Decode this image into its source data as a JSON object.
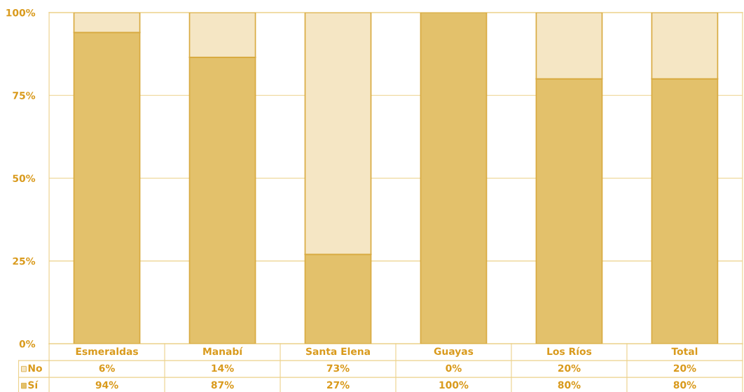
{
  "chart_data": {
    "type": "bar",
    "stacked": true,
    "categories": [
      "Esmeraldas",
      "Manabí",
      "Santa Elena",
      "Guayas",
      "Los Ríos",
      "Total"
    ],
    "series": [
      {
        "name": "Sí",
        "color": "#e3c16b",
        "values": [
          94,
          86.5,
          27,
          100,
          80,
          80
        ],
        "value_labels": [
          "94%",
          "87%",
          "27%",
          "100%",
          "80%",
          "80%"
        ]
      },
      {
        "name": "No",
        "color": "#f5e6c4",
        "values": [
          6,
          13.5,
          73,
          0,
          20,
          20
        ],
        "value_labels": [
          "6%",
          "14%",
          "73%",
          "0%",
          "20%",
          "20%"
        ]
      }
    ],
    "ylim": [
      0,
      100
    ],
    "yticks": [
      {
        "value": 0,
        "label": "0%"
      },
      {
        "value": 25,
        "label": "25%"
      },
      {
        "value": 50,
        "label": "50%"
      },
      {
        "value": 75,
        "label": "75%"
      },
      {
        "value": 100,
        "label": "100%"
      }
    ],
    "grid": "y",
    "legend": "bottom left"
  }
}
